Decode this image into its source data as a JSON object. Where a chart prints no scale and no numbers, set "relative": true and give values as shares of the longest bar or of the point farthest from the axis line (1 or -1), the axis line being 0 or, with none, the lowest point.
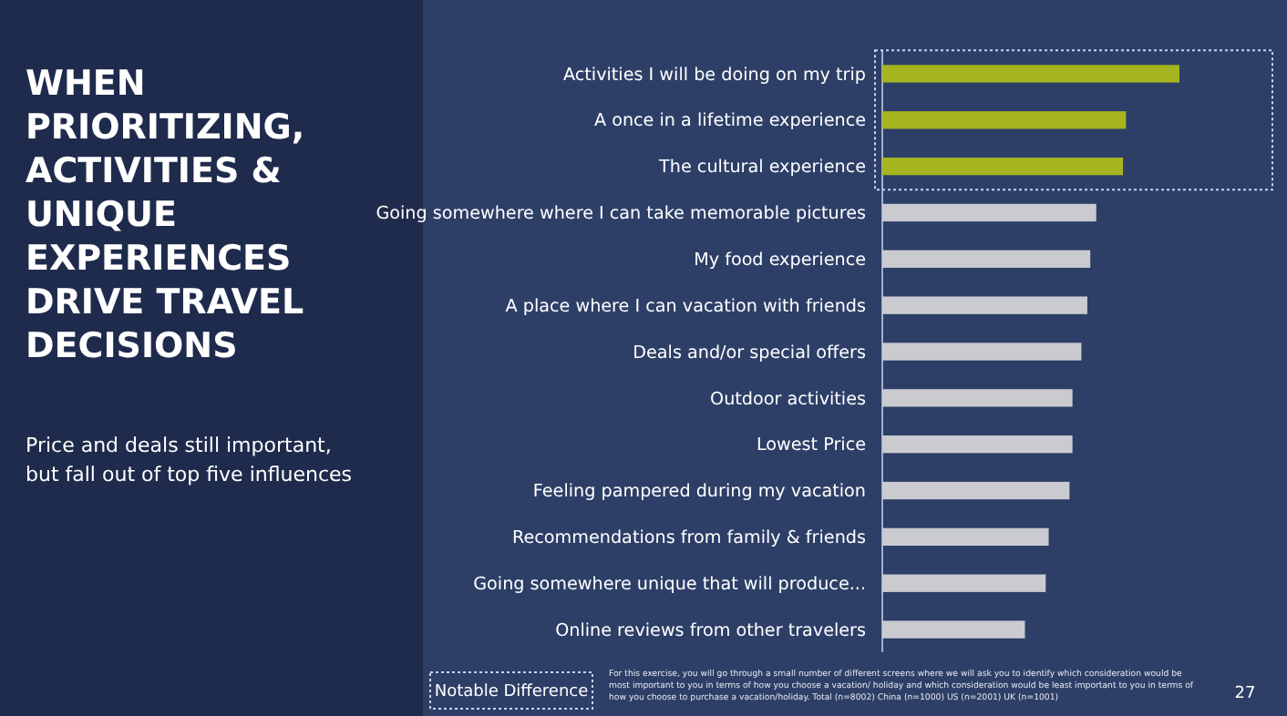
{
  "chart_data": {
    "type": "bar",
    "orientation": "horizontal",
    "relative": true,
    "title": "WHEN\nPRIORITIZING,\nACTIVITIES &\nUNIQUE\nEXPERIENCES\nDRIVE TRAVEL\nDECISIONS",
    "subtitle": "Price and deals still important,\nbut fall out of top five influences",
    "categories": [
      "Activities I will be doing on my trip",
      "A once in a lifetime experience",
      "The cultural experience",
      "Going somewhere where I can take memorable pictures",
      "My food experience",
      "A place where I can vacation with friends",
      "Deals and/or special offers",
      "Outdoor activities",
      "Lowest Price",
      "Feeling pampered during my vacation",
      "Recommendations from family & friends",
      "Going somewhere unique that will produce...",
      "Online reviews from other travelers"
    ],
    "values": [
      1,
      0.82,
      0.81,
      0.72,
      0.7,
      0.69,
      0.67,
      0.64,
      0.64,
      0.63,
      0.56,
      0.55,
      0.48
    ],
    "colors": [
      "#a4b51f",
      "#a4b51f",
      "#a4b51f",
      "#c9cbd0",
      "#c9cbd0",
      "#c9cbd0",
      "#c9cbd0",
      "#c9cbd0",
      "#c9cbd0",
      "#c9cbd0",
      "#c9cbd0",
      "#c9cbd0",
      "#c9cbd0"
    ],
    "annotations": [
      "Notable Difference",
      "For this exercise, you will go through a small number of different screens where we will ask you to identify which consideration would be\nmost important to you in terms of how you choose a vacation/ holiday and which consideration would be least important to you in terms of\nhow you choose to purchase a vacation/holiday. Total (n=8002) China (n=1000) US (n=2001) UK (n=1001)",
      "27"
    ]
  }
}
